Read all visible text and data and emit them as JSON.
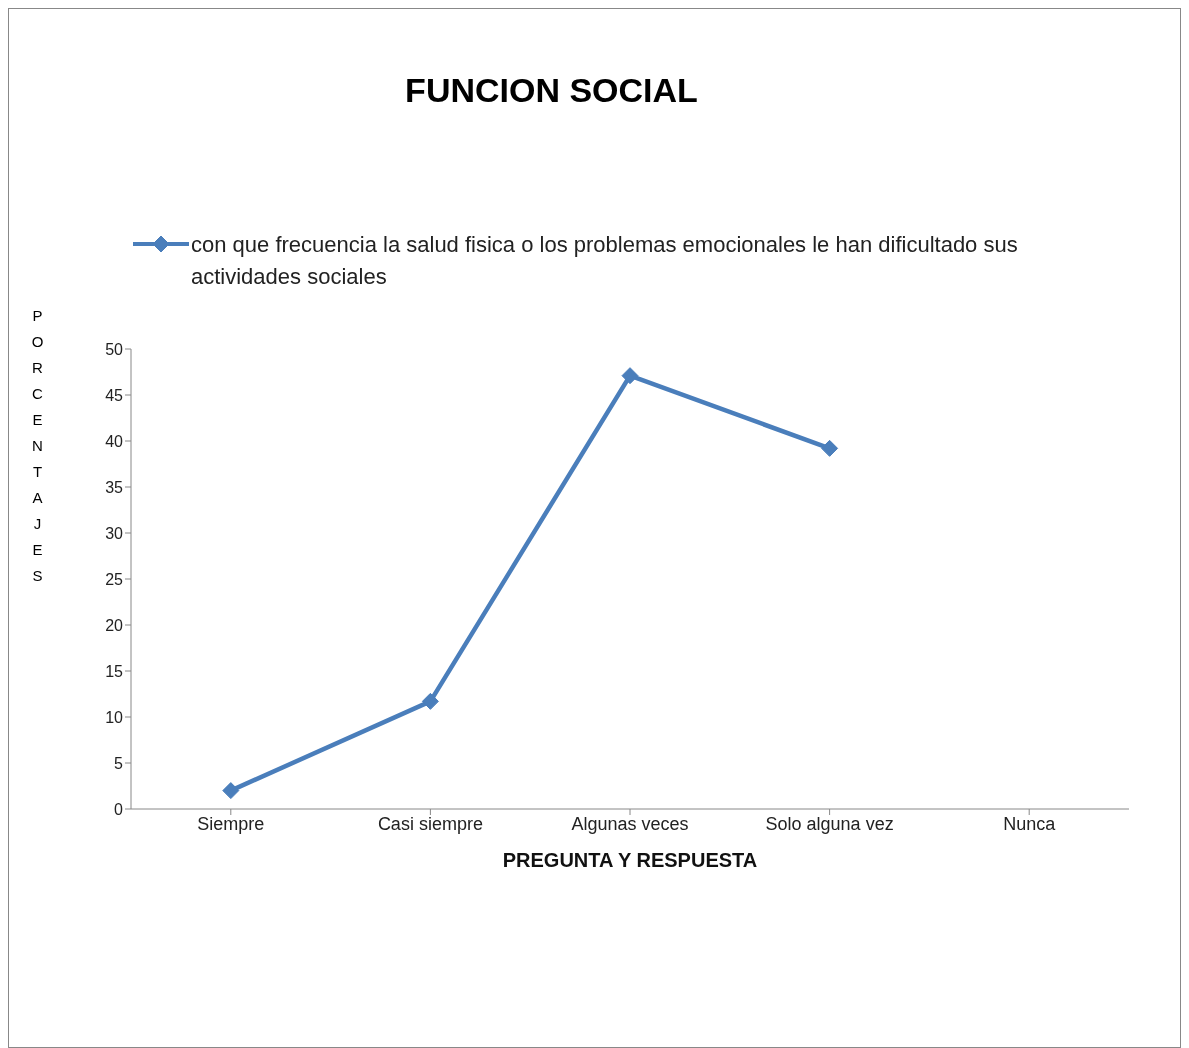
{
  "chart_data": {
    "type": "line",
    "title": "FUNCION SOCIAL",
    "xlabel": "PREGUNTA Y RESPUESTA",
    "ylabel": "PORCENTAJES",
    "categories": [
      "Siempre",
      "Casi siempre",
      "Algunas veces",
      "Solo alguna vez",
      "Nunca"
    ],
    "series": [
      {
        "name": "con que frecuencia la salud fisica o los problemas emocionales le han dificultado sus actividades sociales",
        "color": "#4a7ebb",
        "values": [
          2,
          11.7,
          47.1,
          39.2,
          null
        ]
      }
    ],
    "ylim": [
      0,
      50
    ],
    "yticks": [
      0,
      5,
      10,
      15,
      20,
      25,
      30,
      35,
      40,
      45,
      50
    ],
    "grid": false,
    "legend": "top",
    "marker": "diamond",
    "line_style": "solid"
  }
}
